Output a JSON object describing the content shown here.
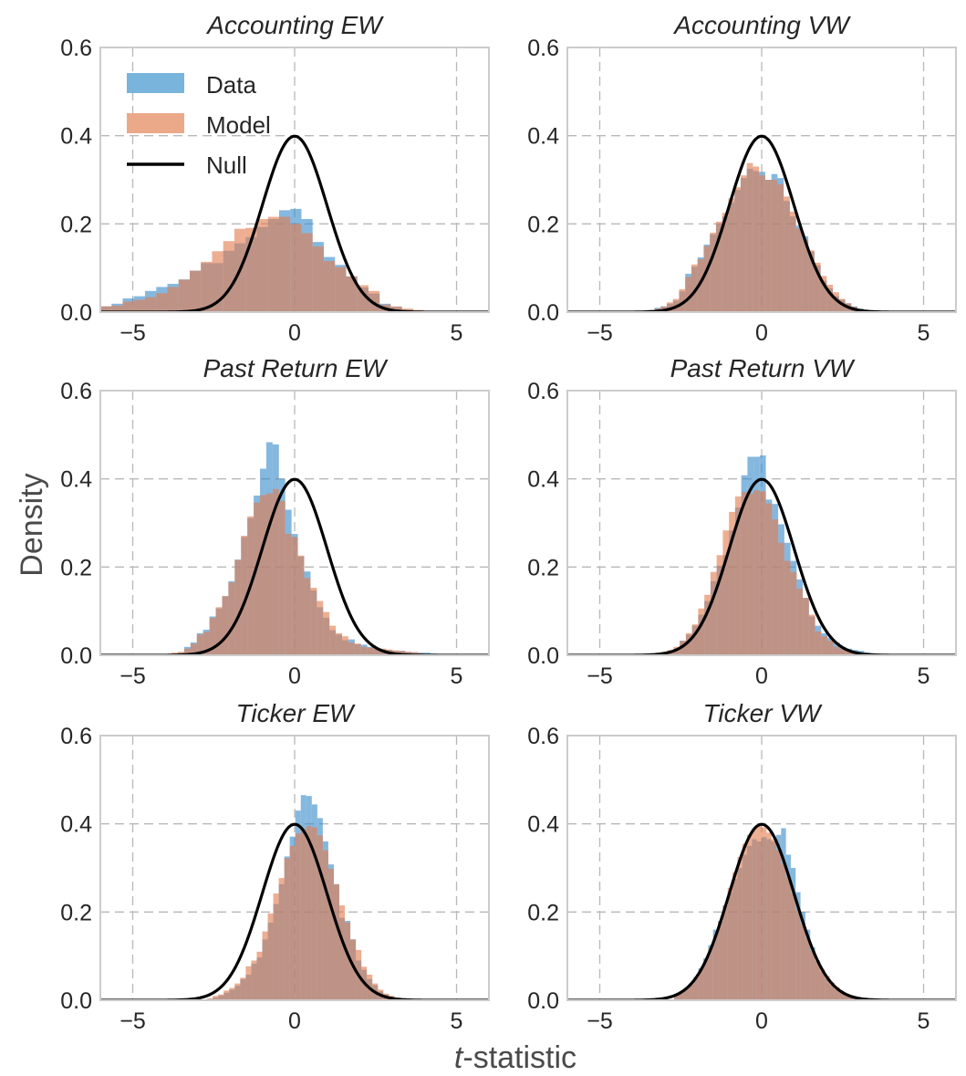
{
  "chart_data": {
    "type": "histogram-grid",
    "ylabel": "Density",
    "xlabel_italic": "t",
    "xlabel_rest": "-statistic",
    "xlim": [
      -6,
      6
    ],
    "ylim": [
      0,
      0.6
    ],
    "xticks": [
      -5,
      0,
      5
    ],
    "xtick_labels": [
      "−5",
      "0",
      "5"
    ],
    "yticks": [
      0.0,
      0.2,
      0.4,
      0.6
    ],
    "ytick_labels": [
      "0.0",
      "0.2",
      "0.4",
      "0.6"
    ],
    "grid": true,
    "legend": {
      "placement": "upper-left of first panel",
      "entries": [
        {
          "label": "Data",
          "kind": "patch",
          "color": "#78b4dc"
        },
        {
          "label": "Model",
          "kind": "patch",
          "color": "#eca98a"
        },
        {
          "label": "Null",
          "kind": "line",
          "color": "#000000"
        }
      ]
    },
    "colors": {
      "data": "#3a8dcc",
      "model": "#e27c4f",
      "null": "#000000"
    },
    "null_distribution": {
      "name": "Null",
      "type": "standard normal",
      "mean": 0,
      "sd": 1
    },
    "panels": [
      {
        "title": "Accounting EW",
        "bin_start": -6.0,
        "bin_width": 0.345,
        "data": [
          0.013,
          0.019,
          0.031,
          0.036,
          0.048,
          0.057,
          0.064,
          0.074,
          0.094,
          0.111,
          0.111,
          0.139,
          0.156,
          0.17,
          0.193,
          0.211,
          0.231,
          0.234,
          0.211,
          0.159,
          0.125,
          0.107,
          0.081,
          0.056,
          0.042,
          0.019,
          0.012,
          0.006,
          0.003
        ],
        "model": [
          0.013,
          0.015,
          0.024,
          0.028,
          0.034,
          0.043,
          0.057,
          0.074,
          0.094,
          0.114,
          0.138,
          0.161,
          0.189,
          0.191,
          0.211,
          0.216,
          0.216,
          0.2,
          0.179,
          0.149,
          0.116,
          0.102,
          0.081,
          0.061,
          0.048,
          0.017,
          0.013,
          0.008,
          0.005,
          0.003,
          0.001
        ]
      },
      {
        "title": "Accounting VW",
        "bin_start": -3.5,
        "bin_width": 0.19,
        "data": [
          0.005,
          0.01,
          0.013,
          0.019,
          0.026,
          0.047,
          0.087,
          0.103,
          0.124,
          0.153,
          0.176,
          0.2,
          0.217,
          0.249,
          0.277,
          0.304,
          0.325,
          0.32,
          0.318,
          0.3,
          0.313,
          0.304,
          0.252,
          0.217,
          0.196,
          0.172,
          0.137,
          0.106,
          0.071,
          0.054,
          0.036,
          0.028,
          0.02,
          0.013,
          0.008,
          0.005
        ],
        "model": [
          0.004,
          0.008,
          0.013,
          0.022,
          0.03,
          0.052,
          0.08,
          0.108,
          0.12,
          0.15,
          0.18,
          0.205,
          0.225,
          0.258,
          0.283,
          0.31,
          0.338,
          0.33,
          0.31,
          0.3,
          0.3,
          0.29,
          0.262,
          0.228,
          0.19,
          0.165,
          0.14,
          0.112,
          0.082,
          0.062,
          0.045,
          0.03,
          0.02,
          0.012,
          0.007,
          0.004
        ]
      },
      {
        "title": "Past Return EW",
        "bin_start": -3.8,
        "bin_width": 0.195,
        "data": [
          0.003,
          0.006,
          0.019,
          0.029,
          0.05,
          0.058,
          0.088,
          0.106,
          0.134,
          0.168,
          0.217,
          0.268,
          0.311,
          0.362,
          0.423,
          0.483,
          0.478,
          0.4,
          0.33,
          0.275,
          0.224,
          0.19,
          0.147,
          0.109,
          0.085,
          0.057,
          0.047,
          0.034,
          0.036,
          0.026,
          0.024,
          0.019,
          0.014,
          0.013,
          0.012,
          0.01,
          0.01,
          0.008,
          0.007,
          0.006,
          0.006,
          0.004
        ],
        "model": [
          0.006,
          0.008,
          0.015,
          0.026,
          0.047,
          0.053,
          0.085,
          0.109,
          0.134,
          0.165,
          0.216,
          0.271,
          0.315,
          0.346,
          0.363,
          0.367,
          0.377,
          0.35,
          0.275,
          0.268,
          0.226,
          0.175,
          0.153,
          0.123,
          0.098,
          0.067,
          0.05,
          0.043,
          0.029,
          0.026,
          0.019,
          0.017,
          0.017,
          0.015,
          0.013,
          0.011,
          0.01,
          0.008,
          0.007,
          0.005,
          0.003
        ]
      },
      {
        "title": "Past Return VW",
        "bin_start": -3.1,
        "bin_width": 0.19,
        "data": [
          0.006,
          0.01,
          0.015,
          0.033,
          0.047,
          0.067,
          0.092,
          0.123,
          0.168,
          0.203,
          0.227,
          0.283,
          0.335,
          0.408,
          0.45,
          0.45,
          0.453,
          0.353,
          0.343,
          0.297,
          0.255,
          0.214,
          0.172,
          0.13,
          0.088,
          0.067,
          0.05,
          0.04,
          0.029,
          0.019,
          0.015,
          0.012,
          0.01,
          0.006,
          0.003
        ],
        "model": [
          0.008,
          0.012,
          0.019,
          0.033,
          0.05,
          0.07,
          0.106,
          0.137,
          0.189,
          0.227,
          0.283,
          0.325,
          0.36,
          0.37,
          0.367,
          0.374,
          0.372,
          0.344,
          0.308,
          0.255,
          0.214,
          0.189,
          0.151,
          0.13,
          0.092,
          0.054,
          0.043,
          0.033,
          0.019,
          0.014,
          0.012,
          0.008,
          0.005,
          0.003
        ]
      },
      {
        "title": "Ticker EW",
        "bin_start": -2.7,
        "bin_width": 0.17,
        "data": [
          0.003,
          0.006,
          0.011,
          0.017,
          0.024,
          0.033,
          0.048,
          0.058,
          0.083,
          0.097,
          0.138,
          0.176,
          0.218,
          0.263,
          0.326,
          0.371,
          0.43,
          0.465,
          0.463,
          0.444,
          0.413,
          0.36,
          0.308,
          0.263,
          0.187,
          0.18,
          0.138,
          0.09,
          0.069,
          0.048,
          0.034,
          0.02,
          0.013,
          0.008,
          0.004
        ],
        "model": [
          0.004,
          0.01,
          0.013,
          0.022,
          0.028,
          0.038,
          0.051,
          0.077,
          0.09,
          0.11,
          0.156,
          0.197,
          0.242,
          0.277,
          0.322,
          0.35,
          0.378,
          0.388,
          0.395,
          0.392,
          0.374,
          0.34,
          0.298,
          0.263,
          0.215,
          0.176,
          0.138,
          0.114,
          0.076,
          0.058,
          0.038,
          0.024,
          0.015,
          0.01,
          0.005
        ]
      },
      {
        "title": "Ticker VW",
        "bin_start": -2.7,
        "bin_width": 0.15,
        "data": [
          0.012,
          0.018,
          0.026,
          0.036,
          0.052,
          0.073,
          0.095,
          0.125,
          0.16,
          0.18,
          0.215,
          0.245,
          0.275,
          0.3,
          0.33,
          0.35,
          0.365,
          0.36,
          0.37,
          0.365,
          0.36,
          0.375,
          0.39,
          0.33,
          0.3,
          0.245,
          0.2,
          0.16,
          0.12,
          0.09,
          0.065,
          0.05,
          0.035,
          0.024,
          0.017,
          0.011,
          0.007,
          0.004
        ],
        "model": [
          0.014,
          0.02,
          0.028,
          0.038,
          0.053,
          0.07,
          0.092,
          0.118,
          0.148,
          0.178,
          0.215,
          0.255,
          0.29,
          0.325,
          0.355,
          0.375,
          0.39,
          0.395,
          0.392,
          0.38,
          0.365,
          0.34,
          0.31,
          0.28,
          0.242,
          0.205,
          0.172,
          0.14,
          0.112,
          0.088,
          0.07,
          0.055,
          0.04,
          0.03,
          0.021,
          0.014,
          0.009,
          0.005
        ]
      }
    ]
  }
}
